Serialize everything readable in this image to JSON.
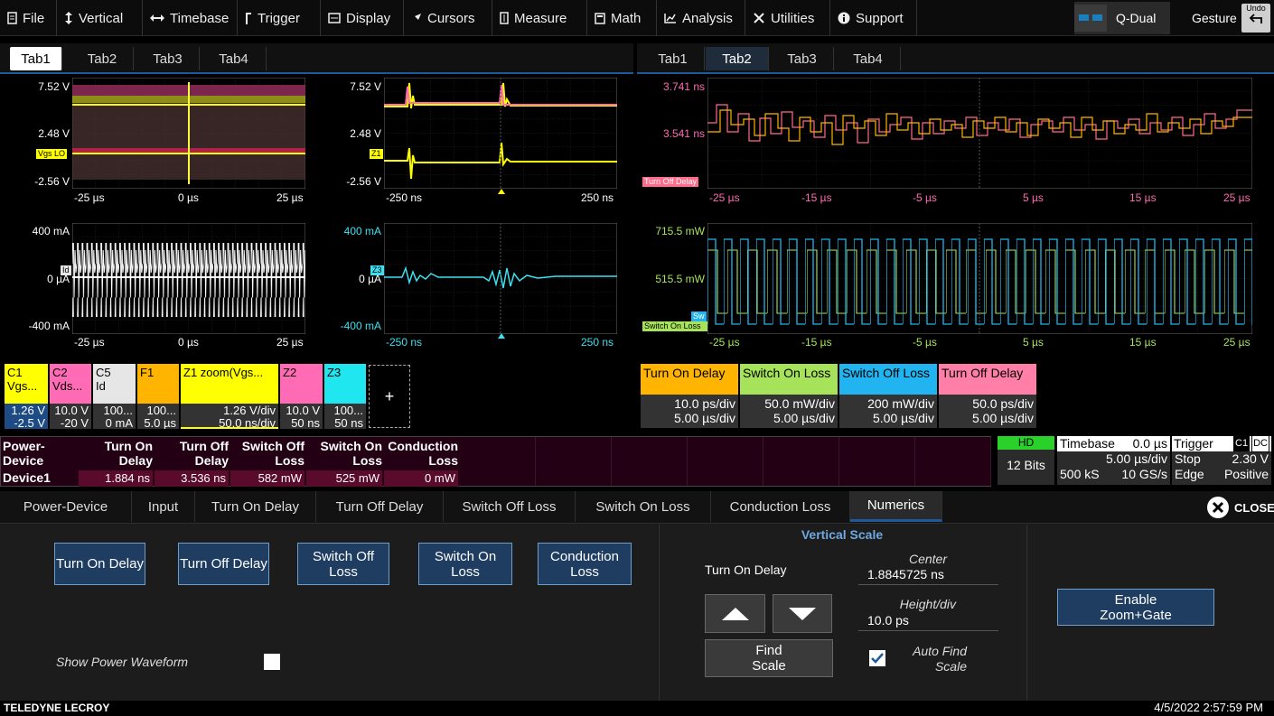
{
  "menu": {
    "file": "File",
    "vertical": "Vertical",
    "timebase": "Timebase",
    "trigger": "Trigger",
    "display": "Display",
    "cursors": "Cursors",
    "measure": "Measure",
    "math": "Math",
    "analysis": "Analysis",
    "utilities": "Utilities",
    "support": "Support",
    "display_mode": "Q-Dual",
    "gesture": "Gesture",
    "undo": "Undo"
  },
  "left_tabs": [
    "Tab1",
    "Tab2",
    "Tab3",
    "Tab4"
  ],
  "right_tabs": [
    "Tab1",
    "Tab2",
    "Tab3",
    "Tab4"
  ],
  "grids": {
    "g1": {
      "y": [
        "7.52 V",
        "2.48 V",
        "-2.56 V"
      ],
      "x": [
        "-25 µs",
        "0 µs",
        "25 µs"
      ],
      "tag": "Vgs LO"
    },
    "g2": {
      "y": [
        "7.52 V",
        "2.48 V",
        "-2.56 V"
      ],
      "x": [
        "-250 ns",
        "250 ns"
      ],
      "tag": "Z1"
    },
    "g3": {
      "y": [
        "3.741 ns",
        "3.541 ns"
      ],
      "x": [
        "-25 µs",
        "-15 µs",
        "-5 µs",
        "5 µs",
        "15 µs",
        "25 µs"
      ],
      "tag": "Turn Off Delay"
    },
    "g4": {
      "y": [
        "400 mA",
        "0 µA",
        "-400 mA"
      ],
      "x": [
        "-25 µs",
        "0 µs",
        "25 µs"
      ],
      "tag": "Id"
    },
    "g5": {
      "y": [
        "400 mA",
        "0 µA",
        "-400 mA"
      ],
      "x": [
        "-250 ns",
        "250 ns"
      ],
      "tag": "Z3"
    },
    "g6": {
      "y": [
        "715.5 mW",
        "515.5 mW"
      ],
      "x": [
        "-25 µs",
        "-15 µs",
        "-5 µs",
        "5 µs",
        "15 µs",
        "25 µs"
      ],
      "tag": "Switch On Loss",
      "tag2": "Sw"
    }
  },
  "channels": [
    {
      "name": "C1\nVgs...",
      "v1": "1.26 V",
      "v2": "-2.5 V",
      "color": "#ffff00"
    },
    {
      "name": "C2\nVds...",
      "v1": "10.0 V",
      "v2": "-20 V",
      "color": "#ff6bb4"
    },
    {
      "name": "C5\nId",
      "v1": "100...",
      "v2": "0 mA",
      "color": "#e6e6e6"
    },
    {
      "name": "F1",
      "v1": "100...",
      "v2": "5.0 µs",
      "color": "#ffb400"
    },
    {
      "name": "Z1 zoom(Vgs...",
      "v1": "1.26 V/div",
      "v2": "50.0 ns/div",
      "color": "#ffff00"
    },
    {
      "name": "Z2",
      "v1": "10.0 V",
      "v2": "50 ns",
      "color": "#ff6bb4"
    },
    {
      "name": "Z3",
      "v1": "100...",
      "v2": "50 ns",
      "color": "#20e6f0"
    }
  ],
  "add_channel": "+",
  "math_desc": [
    {
      "name": "Turn On Delay",
      "v1": "10.0 ps/div",
      "v2": "5.00 µs/div",
      "color": "#ffb400"
    },
    {
      "name": "Switch On Loss",
      "v1": "50.0 mW/div",
      "v2": "5.00 µs/div",
      "color": "#a7e35a"
    },
    {
      "name": "Switch Off Loss",
      "v1": "200 mW/div",
      "v2": "5.00 µs/div",
      "color": "#21b4f0"
    },
    {
      "name": "Turn Off Delay",
      "v1": "50.0 ps/div",
      "v2": "5.00 µs/div",
      "color": "#ff7fa8"
    }
  ],
  "power_table": {
    "headers": [
      "Power-\nDevice",
      "Turn On\nDelay",
      "Turn Off\nDelay",
      "Switch Off\nLoss",
      "Switch On\nLoss",
      "Conduction\nLoss"
    ],
    "row_label": "Device1",
    "values": [
      "1.884 ns",
      "3.536 ns",
      "582 mW",
      "525 mW",
      "0 mW"
    ]
  },
  "hd": {
    "badge": "HD",
    "bits": "12 Bits"
  },
  "timebase": {
    "label": "Timebase",
    "delay": "0.0 µs",
    "div": "5.00 µs/div",
    "samples": "500 kS",
    "rate": "10 GS/s"
  },
  "trigger": {
    "label": "Trigger",
    "ch": "C1",
    "coupling": "DC",
    "mode": "Stop",
    "level": "2.30 V",
    "type": "Edge",
    "slope": "Positive"
  },
  "dialog_tabs": [
    "Power-Device",
    "Input",
    "Turn On Delay",
    "Turn Off Delay",
    "Switch Off Loss",
    "Switch On Loss",
    "Conduction Loss",
    "Numerics"
  ],
  "close": "CLOSE",
  "buttons": {
    "turn_on": "Turn On Delay",
    "turn_off": "Turn Off Delay",
    "switch_off": "Switch Off\nLoss",
    "switch_on": "Switch On\nLoss",
    "conduction": "Conduction\nLoss"
  },
  "show_power": "Show Power Waveform",
  "vscale": {
    "title": "Vertical Scale",
    "param": "Turn On Delay",
    "center_label": "Center",
    "center": "1.8845725 ns",
    "height_label": "Height/div",
    "height": "10.0 ps",
    "find": "Find\nScale",
    "auto_label": "Auto Find\nScale"
  },
  "enable": "Enable\nZoom+Gate",
  "brand": "TELEDYNE LECROY",
  "datetime": "4/5/2022 2:57:59 PM",
  "colors": {
    "yellow": "#ffff00",
    "pink": "#ff6bb4",
    "cyan": "#3de0f0",
    "white": "#ffffff",
    "orange": "#ffb400",
    "green": "#a7e35a",
    "blue": "#21b4f0",
    "accent": "#1e5a9a"
  }
}
